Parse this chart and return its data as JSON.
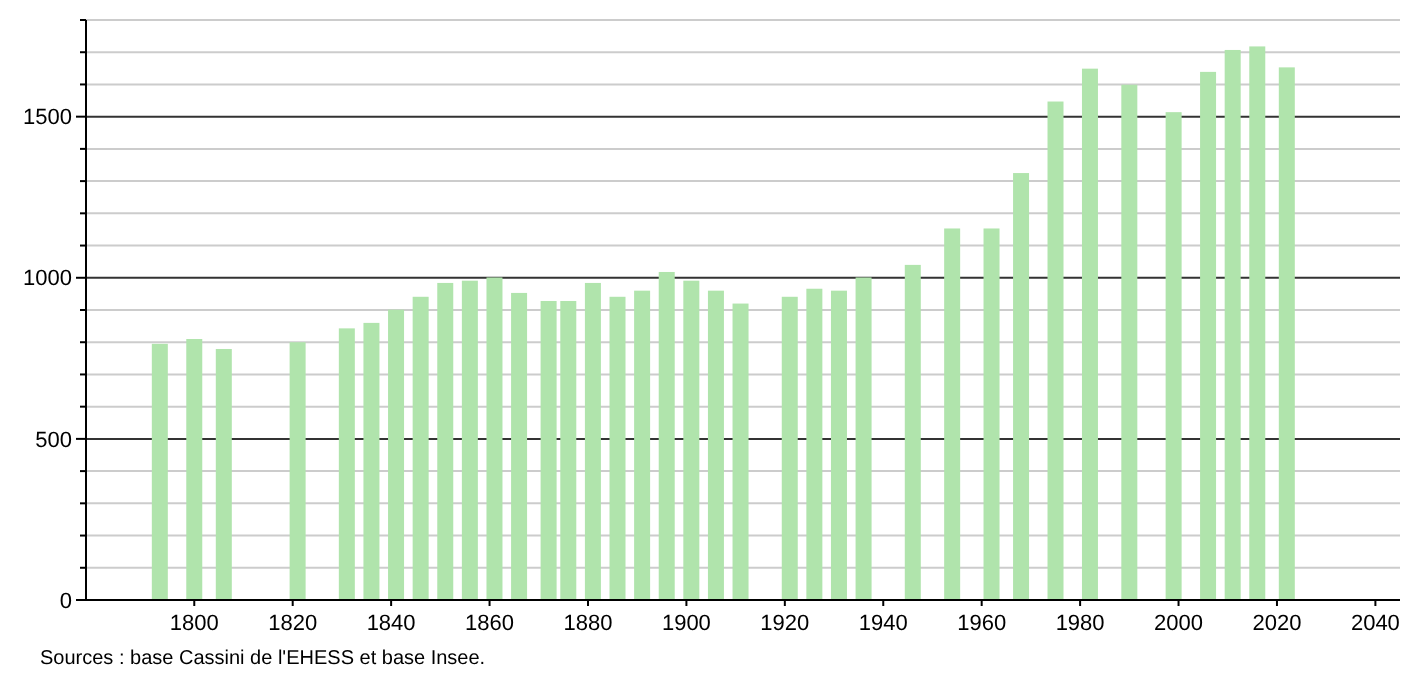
{
  "chart_data": {
    "type": "bar",
    "color": "#b0e4ac",
    "x": [
      1793,
      1800,
      1806,
      1821,
      1831,
      1836,
      1841,
      1846,
      1851,
      1856,
      1861,
      1866,
      1872,
      1876,
      1881,
      1886,
      1891,
      1896,
      1901,
      1906,
      1911,
      1921,
      1926,
      1931,
      1936,
      1946,
      1954,
      1962,
      1968,
      1975,
      1982,
      1990,
      1999,
      2006,
      2011,
      2016,
      2022
    ],
    "values": [
      795,
      810,
      779,
      800,
      843,
      860,
      901,
      941,
      984,
      991,
      1001,
      953,
      928,
      928,
      984,
      941,
      960,
      1018,
      991,
      960,
      920,
      941,
      966,
      960,
      1001,
      1040,
      1153,
      1153,
      1325,
      1547,
      1649,
      1599,
      1514,
      1639,
      1707,
      1718,
      1653
    ],
    "xlim": [
      1778,
      2045
    ],
    "xticks": [
      1800,
      1820,
      1840,
      1860,
      1880,
      1900,
      1920,
      1940,
      1960,
      1980,
      2000,
      2020,
      2040
    ],
    "ylim": [
      0,
      1800
    ],
    "yticks": [
      0,
      {
        "value": 100,
        "label": null
      },
      {
        "value": 200,
        "label": null
      },
      {
        "value": 300,
        "label": null
      },
      {
        "value": 400,
        "label": null
      },
      500,
      {
        "value": 600,
        "label": null
      },
      {
        "value": 700,
        "label": null
      },
      {
        "value": 800,
        "label": null
      },
      {
        "value": 900,
        "label": null
      },
      1000,
      {
        "value": 1100,
        "label": null
      },
      {
        "value": 1200,
        "label": null
      },
      {
        "value": 1300,
        "label": null
      },
      {
        "value": 1400,
        "label": null
      },
      1500,
      {
        "value": 1600,
        "label": null
      },
      {
        "value": 1700,
        "label": null
      },
      {
        "value": 1800,
        "label": null
      }
    ],
    "grid": "y",
    "annotations": [
      "Sources : base Cassini de l'EHESS et base Insee."
    ]
  }
}
